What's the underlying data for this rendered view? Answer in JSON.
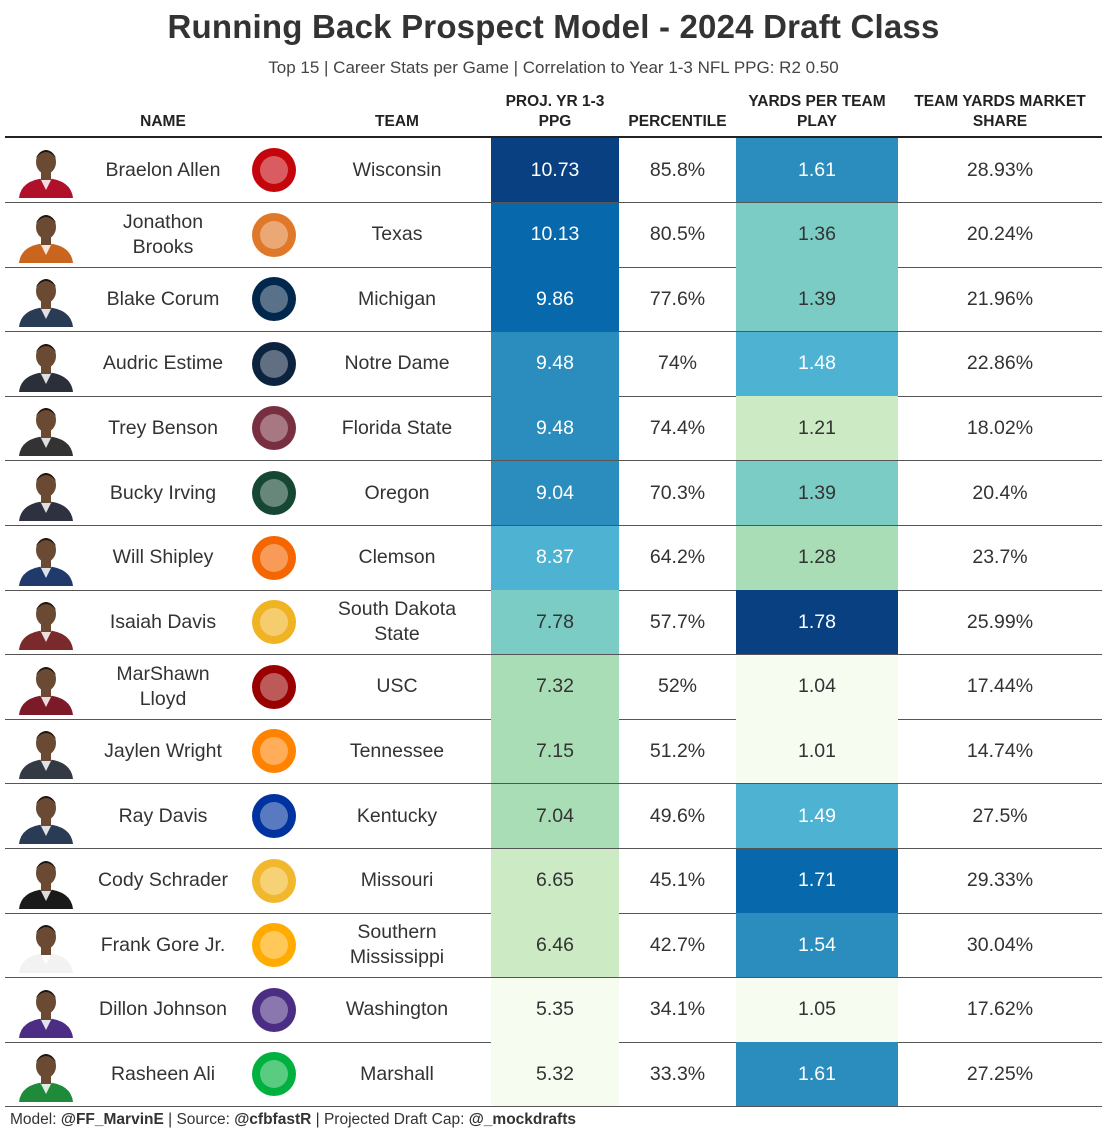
{
  "title": "Running Back Prospect Model - 2024 Draft Class",
  "subtitle": "Top 15 | Career Stats per Game | Correlation to Year 1-3 NFL PPG: R2 0.50",
  "headers": {
    "name": "NAME",
    "team": "TEAM",
    "ppg_line1": "PROJ. YR 1-3",
    "ppg_line2": "PPG",
    "percentile": "PERCENTILE",
    "ypp_line1": "YARDS PER TEAM",
    "ypp_line2": "PLAY",
    "share_line1": "TEAM YARDS MARKET",
    "share_line2": "SHARE"
  },
  "footer": {
    "model_label": "Model: ",
    "model_handle": "@FF_MarvinE",
    "source_label": " | Source: ",
    "source_handle": "@cfbfastR",
    "cap_label": " | Projected Draft Cap: ",
    "cap_handle": "@_mockdrafts"
  },
  "colors": {
    "scale": [
      "#f7fcf0",
      "#e0f3db",
      "#ccebc5",
      "#a8ddb5",
      "#7bccc4",
      "#4eb3d3",
      "#2b8cbe",
      "#0868ac",
      "#084081"
    ]
  },
  "chart_data": {
    "type": "table",
    "columns": [
      "NAME",
      "TEAM",
      "PROJ. YR 1-3 PPG",
      "PERCENTILE",
      "YARDS PER TEAM PLAY",
      "TEAM YARDS MARKET SHARE"
    ],
    "rows": [
      {
        "name": "Braelon Allen",
        "team": "Wisconsin",
        "ppg": 10.73,
        "ppg_text": "10.73",
        "percentile": "85.8%",
        "ypp": 1.61,
        "ypp_text": "1.61",
        "share": "28.93%",
        "logo": "wisconsin-logo-icon",
        "logo_color": "#c5050c",
        "jersey": "#b0102a"
      },
      {
        "name": "Jonathon Brooks",
        "team": "Texas",
        "ppg": 10.13,
        "ppg_text": "10.13",
        "percentile": "80.5%",
        "ypp": 1.36,
        "ypp_text": "1.36",
        "share": "20.24%",
        "logo": "texas-longhorn-logo-icon",
        "logo_color": "#e0782a",
        "jersey": "#c9651e"
      },
      {
        "name": "Blake Corum",
        "team": "Michigan",
        "ppg": 9.86,
        "ppg_text": "9.86",
        "percentile": "77.6%",
        "ypp": 1.39,
        "ypp_text": "1.39",
        "share": "21.96%",
        "logo": "michigan-logo-icon",
        "logo_color": "#00274c",
        "jersey": "#2a3b55"
      },
      {
        "name": "Audric Estime",
        "team": "Notre Dame",
        "ppg": 9.48,
        "ppg_text": "9.48",
        "percentile": "74%",
        "ypp": 1.48,
        "ypp_text": "1.48",
        "share": "22.86%",
        "logo": "notre-dame-logo-icon",
        "logo_color": "#0c2340",
        "jersey": "#2b2f3a"
      },
      {
        "name": "Trey Benson",
        "team": "Florida State",
        "ppg": 9.48,
        "ppg_text": "9.48",
        "percentile": "74.4%",
        "ypp": 1.21,
        "ypp_text": "1.21",
        "share": "18.02%",
        "logo": "florida-state-logo-icon",
        "logo_color": "#782f40",
        "jersey": "#333333"
      },
      {
        "name": "Bucky Irving",
        "team": "Oregon",
        "ppg": 9.04,
        "ppg_text": "9.04",
        "percentile": "70.3%",
        "ypp": 1.39,
        "ypp_text": "1.39",
        "share": "20.4%",
        "logo": "oregon-logo-icon",
        "logo_color": "#154733",
        "jersey": "#2e3240"
      },
      {
        "name": "Will Shipley",
        "team": "Clemson",
        "ppg": 8.37,
        "ppg_text": "8.37",
        "percentile": "64.2%",
        "ypp": 1.28,
        "ypp_text": "1.28",
        "share": "23.7%",
        "logo": "clemson-paw-logo-icon",
        "logo_color": "#f56600",
        "jersey": "#1f3a6b"
      },
      {
        "name": "Isaiah Davis",
        "team": "South Dakota State",
        "ppg": 7.78,
        "ppg_text": "7.78",
        "percentile": "57.7%",
        "ypp": 1.78,
        "ypp_text": "1.78",
        "share": "25.99%",
        "logo": "south-dakota-state-logo-icon",
        "logo_color": "#f0b323",
        "jersey": "#7a2a2a"
      },
      {
        "name": "MarShawn Lloyd",
        "team": "USC",
        "ppg": 7.32,
        "ppg_text": "7.32",
        "percentile": "52%",
        "ypp": 1.04,
        "ypp_text": "1.04",
        "share": "17.44%",
        "logo": "usc-logo-icon",
        "logo_color": "#990000",
        "jersey": "#7d1a2a"
      },
      {
        "name": "Jaylen Wright",
        "team": "Tennessee",
        "ppg": 7.15,
        "ppg_text": "7.15",
        "percentile": "51.2%",
        "ypp": 1.01,
        "ypp_text": "1.01",
        "share": "14.74%",
        "logo": "tennessee-logo-icon",
        "logo_color": "#ff8200",
        "jersey": "#333a44"
      },
      {
        "name": "Ray Davis",
        "team": "Kentucky",
        "ppg": 7.04,
        "ppg_text": "7.04",
        "percentile": "49.6%",
        "ypp": 1.49,
        "ypp_text": "1.49",
        "share": "27.5%",
        "logo": "kentucky-logo-icon",
        "logo_color": "#0033a0",
        "jersey": "#2a3b55"
      },
      {
        "name": "Cody Schrader",
        "team": "Missouri",
        "ppg": 6.65,
        "ppg_text": "6.65",
        "percentile": "45.1%",
        "ypp": 1.71,
        "ypp_text": "1.71",
        "share": "29.33%",
        "logo": "missouri-tiger-logo-icon",
        "logo_color": "#f1b82d",
        "jersey": "#1a1a1a"
      },
      {
        "name": "Frank Gore Jr.",
        "team": "Southern Mississippi",
        "ppg": 6.46,
        "ppg_text": "6.46",
        "percentile": "42.7%",
        "ypp": 1.54,
        "ypp_text": "1.54",
        "share": "30.04%",
        "logo": "southern-miss-eagle-logo-icon",
        "logo_color": "#ffab00",
        "jersey": "#f2f2f2"
      },
      {
        "name": "Dillon Johnson",
        "team": "Washington",
        "ppg": 5.35,
        "ppg_text": "5.35",
        "percentile": "34.1%",
        "ypp": 1.05,
        "ypp_text": "1.05",
        "share": "17.62%",
        "logo": "washington-logo-icon",
        "logo_color": "#4b2e83",
        "jersey": "#4b2e83"
      },
      {
        "name": "Rasheen Ali",
        "team": "Marshall",
        "ppg": 5.32,
        "ppg_text": "5.32",
        "percentile": "33.3%",
        "ypp": 1.61,
        "ypp_text": "1.61",
        "share": "27.25%",
        "logo": "marshall-logo-icon",
        "logo_color": "#00b140",
        "jersey": "#1f8a3a"
      }
    ]
  }
}
